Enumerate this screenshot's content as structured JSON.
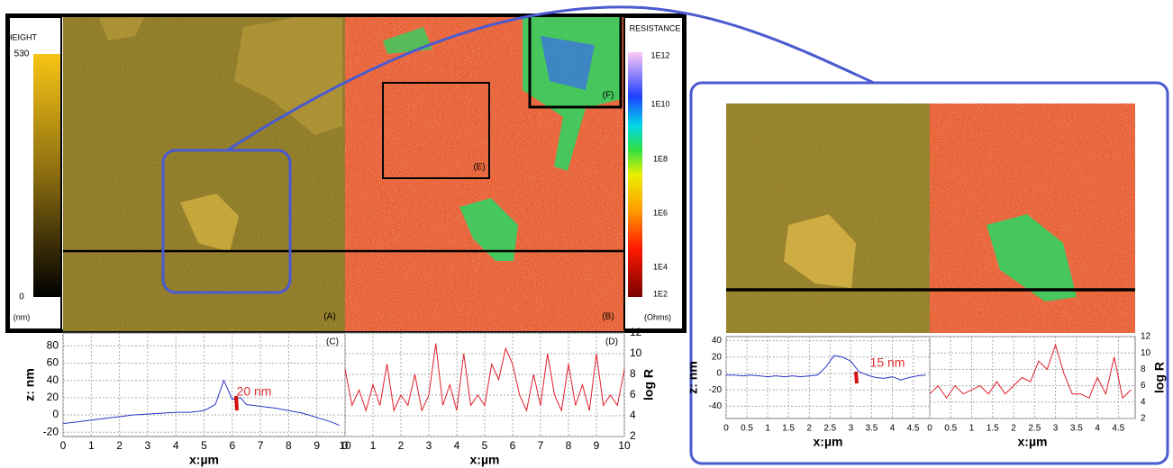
{
  "panels": {
    "A": "(A)",
    "B": "(B)",
    "E": "(E)",
    "F": "(F)"
  },
  "height_colorbar": {
    "title": "HEIGHT",
    "max": 530,
    "min": 0,
    "unit": "(nm)"
  },
  "resistance_colorbar": {
    "title": "RESISTANCE",
    "ticks": [
      "1E12",
      "1E10",
      "1E8",
      "1E6",
      "1E4",
      "1E2"
    ],
    "unit": "(Ohms)"
  },
  "chart_data": [
    {
      "type": "line",
      "panel_label": "(C)",
      "xlabel": "x:µm",
      "ylabel": "z: nm",
      "annotation": "20 nm",
      "color": "#2a35c8",
      "grid": true,
      "y_axis_side": "left",
      "x": [
        0,
        0.5,
        1,
        1.5,
        2,
        2.5,
        3,
        3.5,
        4,
        4.5,
        5,
        5.4,
        5.7,
        6,
        6.3,
        6.5,
        7,
        7.5,
        8,
        8.5,
        9,
        9.5,
        9.8
      ],
      "values": [
        -10,
        -8,
        -6,
        -4,
        -2,
        0,
        1,
        2,
        3,
        3,
        5,
        12,
        40,
        18,
        20,
        12,
        10,
        8,
        5,
        2,
        -3,
        -8,
        -12
      ],
      "xlim": [
        0,
        10
      ],
      "xticks": [
        0,
        1,
        2,
        3,
        4,
        5,
        6,
        7,
        8,
        9,
        10
      ],
      "ylim": [
        -25,
        95
      ],
      "yticks": [
        -20,
        0,
        20,
        40,
        60,
        80
      ]
    },
    {
      "type": "line",
      "panel_label": "(D)",
      "xlabel": "x:µm",
      "ylabel": "log R",
      "color": "#e0202a",
      "grid": true,
      "y_axis_side": "right",
      "x": [
        0,
        0.25,
        0.5,
        0.75,
        1,
        1.25,
        1.5,
        1.75,
        2,
        2.25,
        2.5,
        2.75,
        3,
        3.25,
        3.5,
        3.75,
        4,
        4.25,
        4.5,
        4.75,
        5,
        5.25,
        5.5,
        5.75,
        6,
        6.25,
        6.5,
        6.75,
        7,
        7.25,
        7.5,
        7.75,
        8,
        8.25,
        8.5,
        8.75,
        9,
        9.25,
        9.5,
        9.75,
        10
      ],
      "values": [
        8.5,
        5,
        6.5,
        4.5,
        7,
        5,
        9,
        4.5,
        6,
        5,
        8,
        4.5,
        6,
        11,
        5,
        7,
        4.5,
        10,
        5,
        6,
        5,
        9,
        7.5,
        10.5,
        9,
        6,
        4.5,
        8,
        5,
        10,
        6,
        4.5,
        9,
        5,
        7,
        4.5,
        10,
        5,
        6,
        5,
        8.5
      ],
      "xlim": [
        0,
        10
      ],
      "xticks": [
        0,
        1,
        2,
        3,
        4,
        5,
        6,
        7,
        8,
        9,
        10
      ],
      "ylim": [
        2,
        12
      ],
      "yticks": [
        2,
        4,
        6,
        8,
        10,
        12
      ]
    },
    {
      "type": "line",
      "xlabel": "x:µm",
      "ylabel": "z: nm",
      "annotation": "15 nm",
      "color": "#2a35c8",
      "grid": true,
      "y_axis_side": "left",
      "x": [
        0,
        0.2,
        0.4,
        0.6,
        0.8,
        1,
        1.2,
        1.4,
        1.6,
        1.8,
        2,
        2.2,
        2.4,
        2.6,
        2.8,
        3,
        3.2,
        3.4,
        3.6,
        3.8,
        4,
        4.2,
        4.4,
        4.6,
        4.8
      ],
      "values": [
        -2,
        -2,
        -3,
        -2,
        -3,
        -4,
        -3,
        -4,
        -3,
        -4,
        -3,
        -2,
        8,
        22,
        20,
        15,
        2,
        -2,
        -5,
        -6,
        -4,
        -8,
        -5,
        -3,
        -2
      ],
      "xlim": [
        0,
        4.9
      ],
      "xticks": [
        0,
        0.5,
        1,
        1.5,
        2,
        2.5,
        3,
        3.5,
        4,
        4.5
      ],
      "ylim": [
        -55,
        45
      ],
      "yticks": [
        -40,
        -20,
        0,
        20,
        40
      ]
    },
    {
      "type": "line",
      "xlabel": "x:µm",
      "ylabel": "log R",
      "color": "#e0202a",
      "grid": true,
      "y_axis_side": "right",
      "x": [
        0,
        0.2,
        0.4,
        0.6,
        0.8,
        1,
        1.2,
        1.4,
        1.6,
        1.8,
        2,
        2.2,
        2.4,
        2.6,
        2.8,
        3,
        3.2,
        3.4,
        3.6,
        3.8,
        4,
        4.2,
        4.4,
        4.6,
        4.8
      ],
      "values": [
        5,
        6,
        4.5,
        6,
        5,
        5.5,
        6,
        5,
        6.5,
        5,
        6,
        7,
        6.5,
        9,
        8,
        11,
        7.5,
        5,
        5,
        4.5,
        7,
        5,
        9.5,
        4.5,
        5.5
      ],
      "xlim": [
        0,
        4.9
      ],
      "xticks": [
        0,
        0.5,
        1,
        1.5,
        2,
        2.5,
        3,
        3.5,
        4,
        4.5
      ],
      "ylim": [
        2,
        12
      ],
      "yticks": [
        2,
        4,
        6,
        8,
        10,
        12
      ]
    }
  ]
}
